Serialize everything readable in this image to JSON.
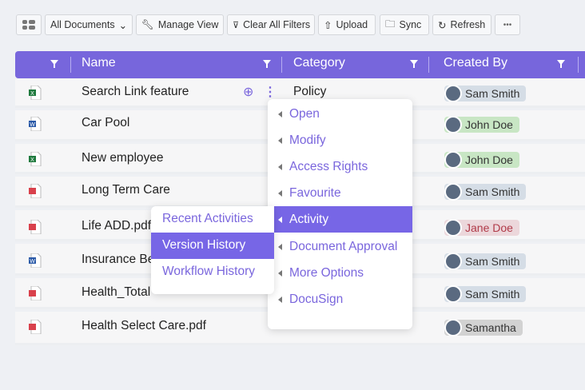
{
  "toolbar": {
    "view_toggle_icon": "grid-list-icon",
    "all_documents": "All Documents",
    "manage_view": "Manage View",
    "clear_filters": "Clear All Filters",
    "upload": "Upload",
    "sync": "Sync",
    "refresh": "Refresh",
    "more": "•••"
  },
  "table": {
    "columns": [
      "Name",
      "Category",
      "Created By"
    ],
    "rows": [
      {
        "name": "Search Link feature",
        "type": "excel",
        "category": "Policy",
        "created_by": "Sam Smith"
      },
      {
        "name": "Car Pool",
        "type": "word",
        "category": "",
        "created_by": "John Doe"
      },
      {
        "name": "New employee",
        "type": "excel",
        "category": "",
        "created_by": "John Doe"
      },
      {
        "name": "Long Term Care",
        "type": "pdf",
        "category": "",
        "created_by": "Sam Smith"
      },
      {
        "name": "Life ADD.pdf",
        "type": "pdf",
        "category": "",
        "created_by": "Jane Doe"
      },
      {
        "name": "Insurance Be",
        "type": "word",
        "category": "",
        "created_by": "Sam Smith"
      },
      {
        "name": "Health_Total",
        "type": "pdf",
        "category": "",
        "created_by": "Sam Smith"
      },
      {
        "name": "Health Select Care.pdf",
        "type": "pdf",
        "category": "",
        "created_by": "Samantha"
      }
    ]
  },
  "context_menu": {
    "items": [
      "Open",
      "Modify",
      "Access Rights",
      "Favourite",
      "Activity",
      "Document Approval",
      "More Options",
      "DocuSign"
    ],
    "active": "Activity"
  },
  "submenu": {
    "items": [
      "Recent Activities",
      "Version History",
      "Workflow History"
    ],
    "active": "Version History"
  },
  "colors": {
    "accent": "#7766dc",
    "excel": "#1f7a3e",
    "word": "#2b5aa8",
    "pdf": "#d9414c"
  }
}
